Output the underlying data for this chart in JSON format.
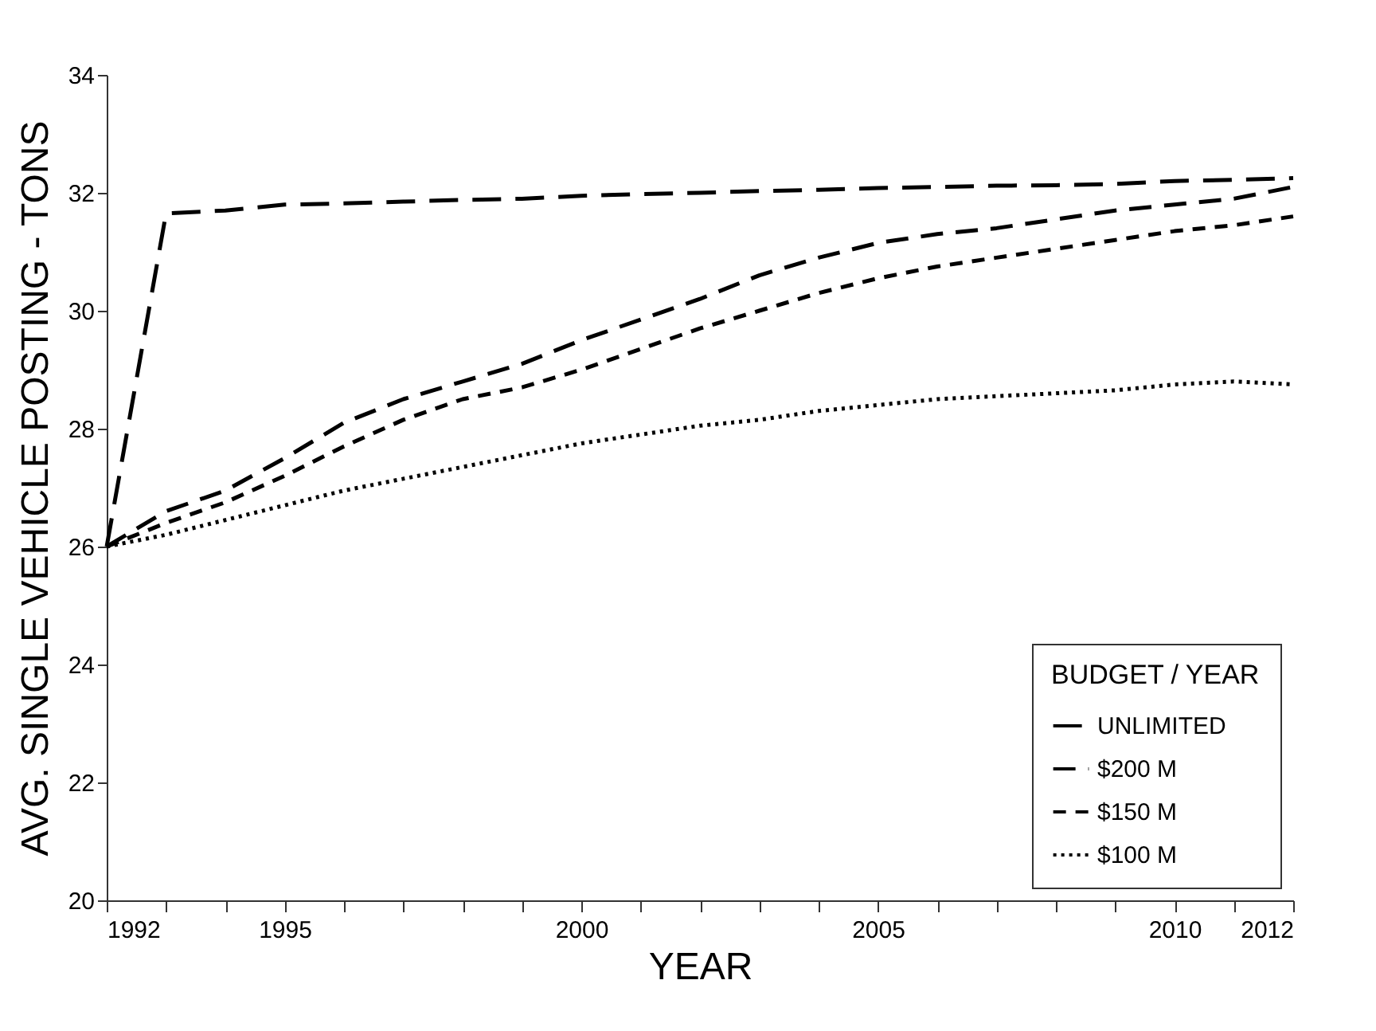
{
  "chart_data": {
    "type": "line",
    "xlabel": "YEAR",
    "ylabel": "AVG. SINGLE VEHICLE POSTING - TONS",
    "legend_title": "BUDGET / YEAR",
    "legend": "bottom right",
    "grid": false,
    "x": [
      1992,
      1993,
      1994,
      1995,
      1996,
      1997,
      1998,
      1999,
      2000,
      2001,
      2002,
      2003,
      2004,
      2005,
      2006,
      2007,
      2008,
      2009,
      2010,
      2011,
      2012
    ],
    "xlim": [
      1992,
      2012
    ],
    "xticks": [
      1992,
      {
        "value": 1993,
        "label": null
      },
      {
        "value": 1994,
        "label": null
      },
      1995,
      {
        "value": 1996,
        "label": null
      },
      {
        "value": 1997,
        "label": null
      },
      {
        "value": 1998,
        "label": null
      },
      {
        "value": 1999,
        "label": null
      },
      2000,
      {
        "value": 2001,
        "label": null
      },
      {
        "value": 2002,
        "label": null
      },
      {
        "value": 2003,
        "label": null
      },
      {
        "value": 2004,
        "label": null
      },
      2005,
      {
        "value": 2006,
        "label": null
      },
      {
        "value": 2007,
        "label": null
      },
      {
        "value": 2008,
        "label": null
      },
      {
        "value": 2009,
        "label": null
      },
      2010,
      {
        "value": 2011,
        "label": null
      },
      2012
    ],
    "ylim": [
      20,
      34
    ],
    "yticks": [
      20,
      22,
      24,
      26,
      28,
      30,
      32,
      34
    ],
    "series": [
      {
        "name": "UNLIMITED",
        "color": "#000000",
        "line_style": "dashed",
        "values": [
          26,
          31.65,
          31.7,
          31.8,
          31.82,
          31.85,
          31.88,
          31.9,
          31.95,
          31.98,
          32,
          32.03,
          32.05,
          32.08,
          32.1,
          32.12,
          32.13,
          32.15,
          32.2,
          32.22,
          32.25
        ]
      },
      {
        "name": "$200 M",
        "color": "#000000",
        "line_style": "dashed",
        "values": [
          26,
          26.6,
          26.95,
          27.5,
          28.1,
          28.5,
          28.8,
          29.1,
          29.5,
          29.85,
          30.2,
          30.6,
          30.9,
          31.15,
          31.3,
          31.4,
          31.55,
          31.7,
          31.8,
          31.9,
          32.1
        ]
      },
      {
        "name": "$150 M",
        "color": "#000000",
        "line_style": "dashed",
        "values": [
          26,
          26.4,
          26.75,
          27.2,
          27.7,
          28.15,
          28.5,
          28.7,
          29,
          29.35,
          29.7,
          30,
          30.3,
          30.55,
          30.75,
          30.9,
          31.05,
          31.2,
          31.35,
          31.45,
          31.6
        ]
      },
      {
        "name": "$100 M",
        "color": "#000000",
        "line_style": "dotted",
        "values": [
          26,
          26.2,
          26.45,
          26.7,
          26.95,
          27.15,
          27.35,
          27.55,
          27.75,
          27.9,
          28.05,
          28.15,
          28.3,
          28.4,
          28.5,
          28.55,
          28.6,
          28.65,
          28.75,
          28.8,
          28.75
        ]
      }
    ]
  }
}
